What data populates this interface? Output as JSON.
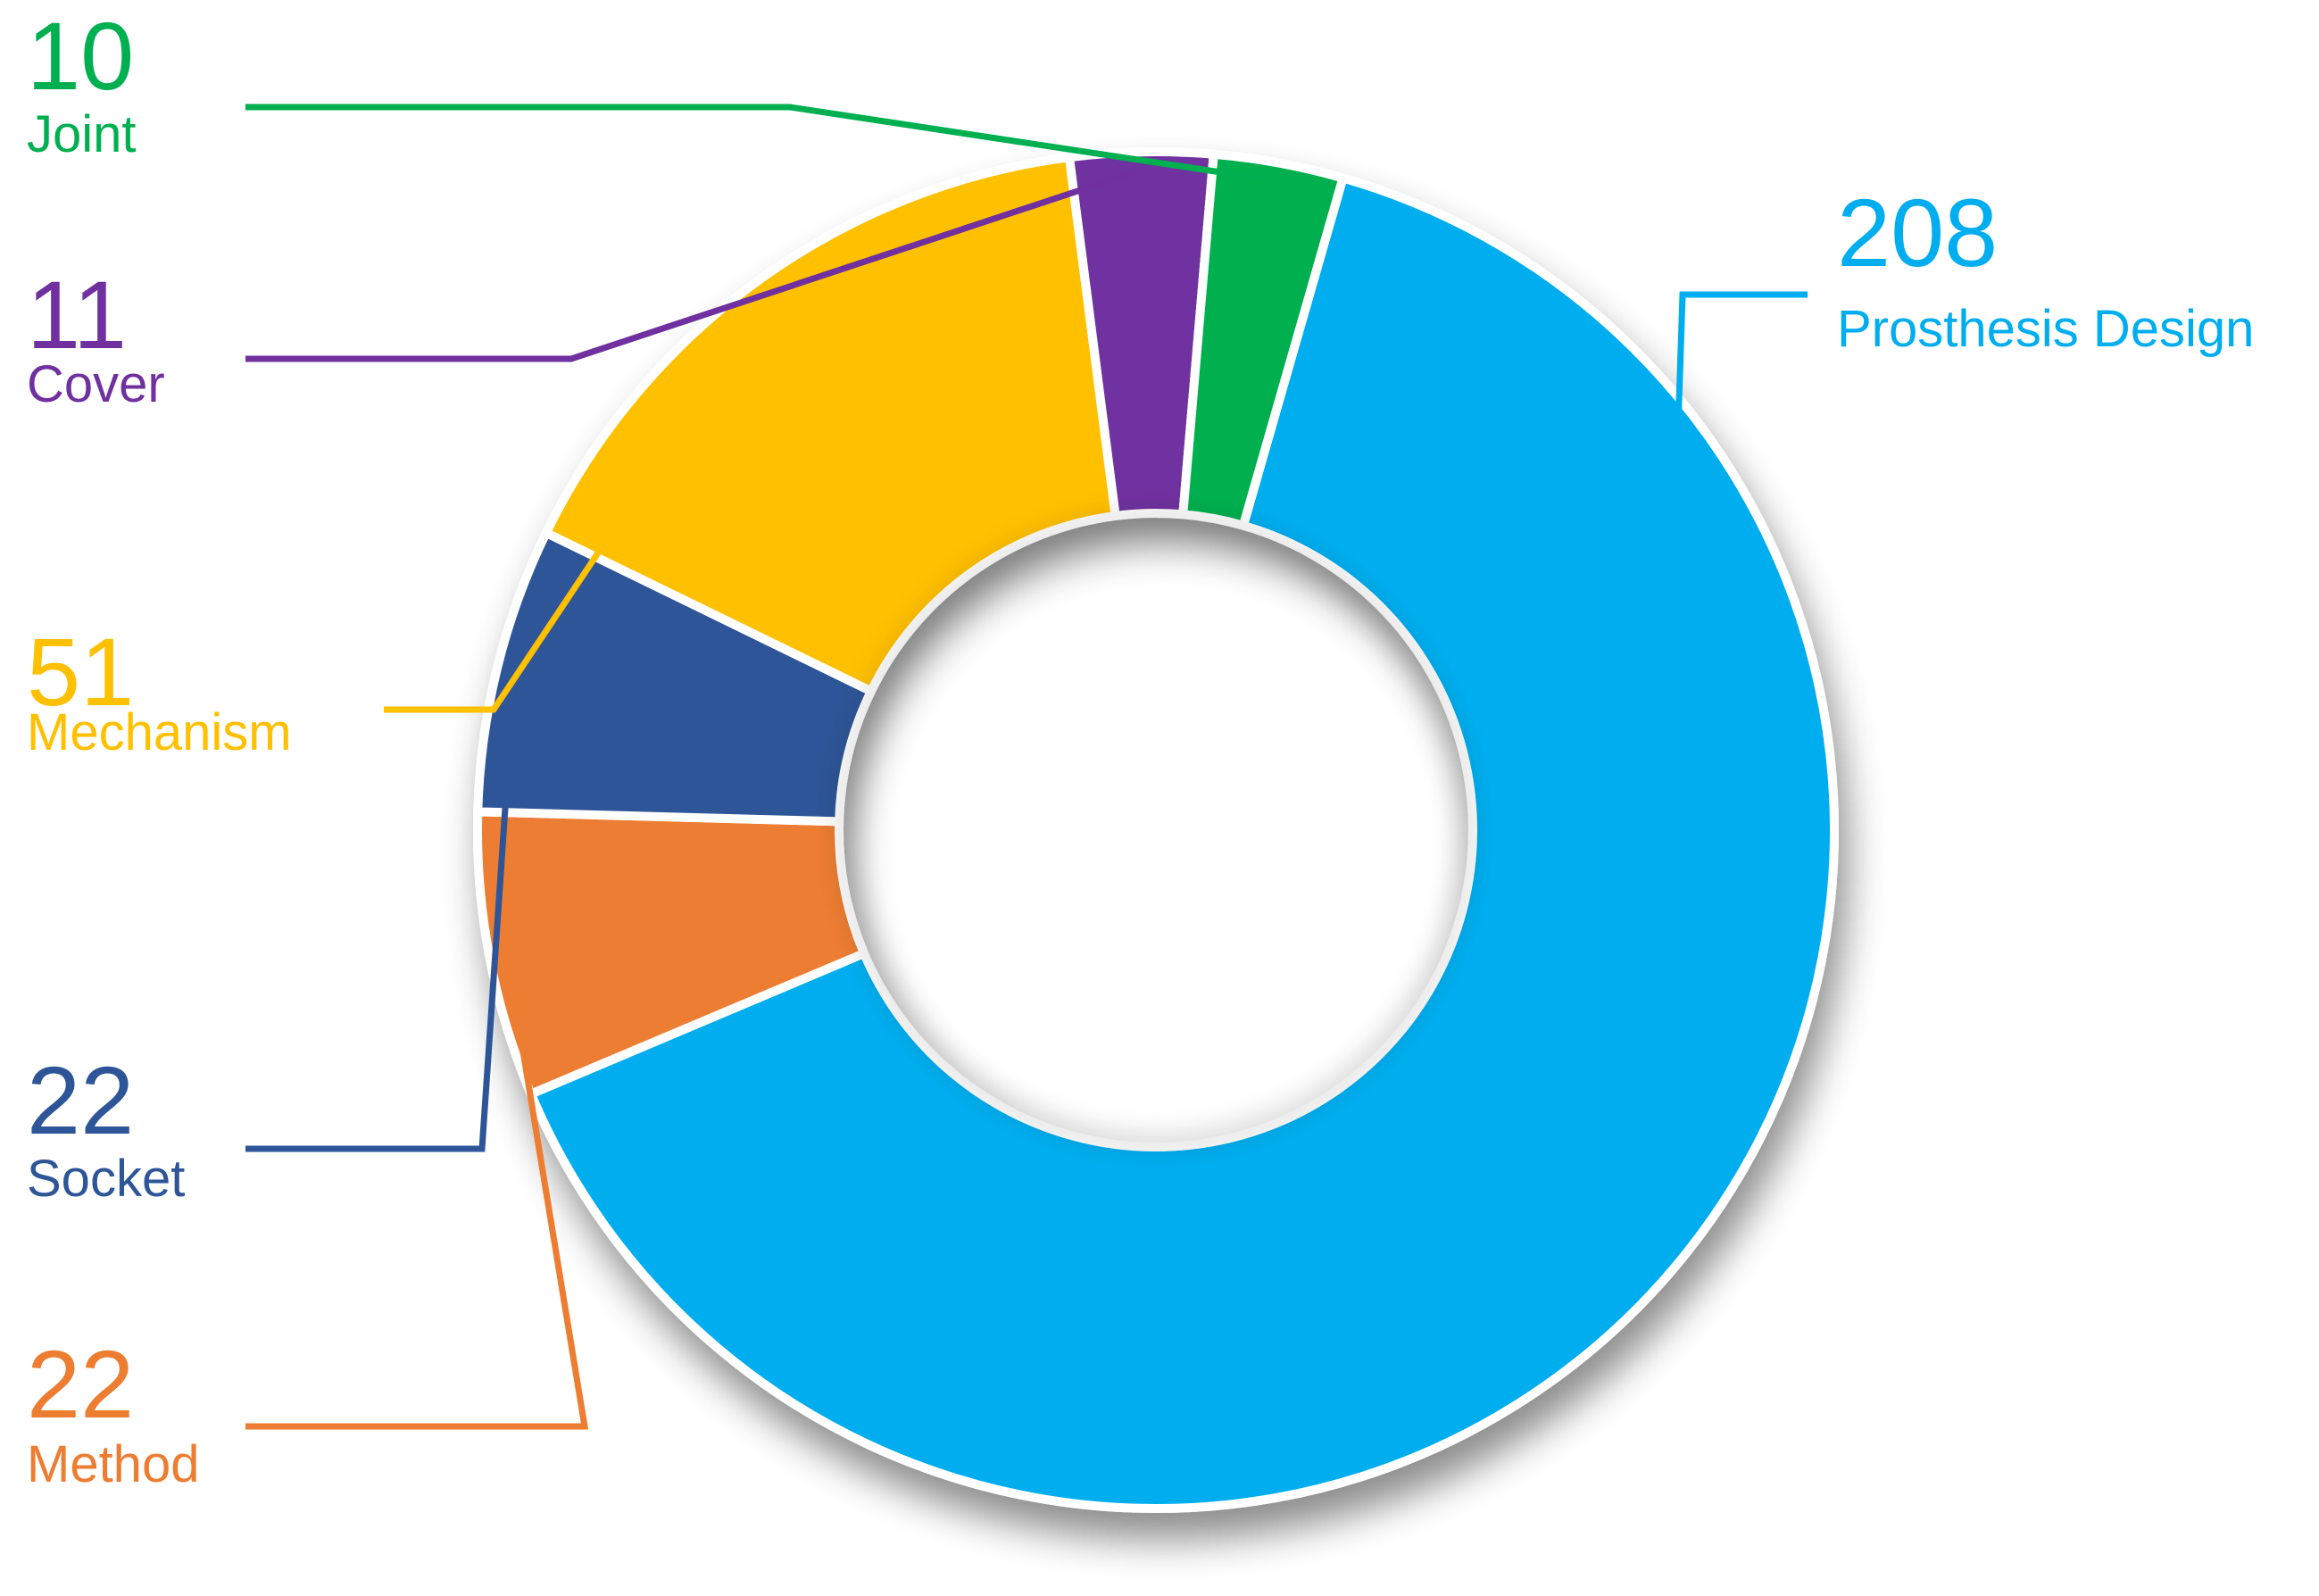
{
  "chart_data": {
    "type": "pie",
    "variant": "donut",
    "title": "",
    "legend": "none",
    "slices": [
      {
        "label": "Prosthesis Design",
        "value": 208,
        "value_text": "208",
        "color": "#00AEEF"
      },
      {
        "label": "Method",
        "value": 22,
        "value_text": "22",
        "color": "#ED7D31"
      },
      {
        "label": "Socket",
        "value": 22,
        "value_text": "22",
        "color": "#2E5597"
      },
      {
        "label": "Mechanism",
        "value": 51,
        "value_text": "51",
        "color": "#FFC000"
      },
      {
        "label": "Cover",
        "value": 11,
        "value_text": "11",
        "color": "#7030A0"
      },
      {
        "label": "Joint",
        "value": 10,
        "value_text": "10",
        "color": "#00B050"
      }
    ]
  }
}
